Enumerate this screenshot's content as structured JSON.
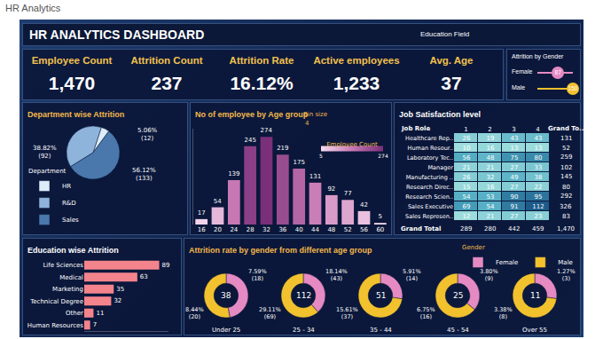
{
  "page_title": "HR Analytics",
  "dashboard_title": "HR ANALYTICS DASHBOARD",
  "filter_label": "Education Field",
  "kpis": [
    {
      "label": "Employee Count",
      "value": "1,470"
    },
    {
      "label": "Attrition Count",
      "value": "237"
    },
    {
      "label": "Attrition Rate",
      "value": "16.12%"
    },
    {
      "label": "Active employees",
      "value": "1,233"
    },
    {
      "label": "Avg. Age",
      "value": "37"
    }
  ],
  "gender_attrition": {
    "title": "Attrition by Gender",
    "categories": [
      "Female",
      "Male"
    ],
    "values": [
      87,
      150
    ],
    "colors": [
      "#e58ac3",
      "#f2c12e"
    ]
  },
  "chart_data": [
    {
      "type": "pie",
      "title": "Department wise Attrition",
      "categories": [
        "HR",
        "R&D",
        "Sales"
      ],
      "values": [
        12,
        92,
        133
      ],
      "value_labels": [
        [
          "5.06%",
          "(12)"
        ],
        [
          "38.82%",
          "(92)"
        ],
        [
          "56.12%",
          "(133)"
        ]
      ],
      "colors": [
        "#dcecf8",
        "#8fb4dc",
        "#4a78ad"
      ],
      "legend": "bottom left",
      "legend_title": "Department"
    },
    {
      "type": "bar",
      "title": "No of employee by Age group",
      "annotations": [
        "Bin size",
        "4"
      ],
      "categories": [
        "16",
        "20",
        "24",
        "28",
        "32",
        "36",
        "40",
        "44",
        "48",
        "52",
        "56",
        "60"
      ],
      "values": [
        17,
        54,
        139,
        245,
        274,
        219,
        175,
        131,
        92,
        77,
        42,
        5
      ],
      "data_labels": true,
      "ylim": [
        0,
        300
      ],
      "tick_labels": "x",
      "color_bar": {
        "title": "Employee Count",
        "range": [
          5,
          274
        ],
        "ticks": [
          5,
          274
        ]
      }
    },
    {
      "type": "heatmap",
      "title": "Job Satisfaction level",
      "row_header": "Job Role",
      "columns": [
        1,
        2,
        3,
        4
      ],
      "total_header": "Grand To..",
      "rows": [
        "Healthcare Rep..",
        "Human Resour..",
        "Laboratory Tec..",
        "Manager",
        "Manufacturing ..",
        "Research Direc..",
        "Research Scien..",
        "Sales Executive",
        "Sales Represen.."
      ],
      "cells": [
        [
          26,
          19,
          43,
          43
        ],
        [
          10,
          16,
          13,
          13
        ],
        [
          56,
          48,
          75,
          80
        ],
        [
          21,
          21,
          27,
          33
        ],
        [
          26,
          32,
          49,
          38
        ],
        [
          15,
          16,
          27,
          22
        ],
        [
          54,
          53,
          90,
          95
        ],
        [
          69,
          54,
          91,
          112
        ],
        [
          12,
          21,
          27,
          23
        ]
      ],
      "row_totals": [
        131,
        52,
        259,
        102,
        145,
        80,
        292,
        326,
        83
      ],
      "total_row_label": "Grand Total",
      "column_totals": [
        289,
        280,
        442,
        459
      ],
      "grand_total": "1,470",
      "data_labels": true
    },
    {
      "type": "bar",
      "title": "Education wise Attrition",
      "orientation": "horizontal",
      "categories": [
        "Life Sciences",
        "Medical",
        "Marketing",
        "Technical Degree",
        "Other",
        "Human Resources"
      ],
      "values": [
        89,
        63,
        35,
        32,
        11,
        7
      ],
      "color": "#f4848c",
      "data_labels": true,
      "xlim": [
        0,
        100
      ],
      "tick_labels": "y"
    },
    {
      "type": "pie",
      "title": "Attrition rate by gender from different age group",
      "legend": "top right",
      "legend_title": "Gender",
      "categories": [
        "Female",
        "Male"
      ],
      "colors": [
        "#e58ac3",
        "#f2c12e"
      ],
      "groups": [
        {
          "name": "Under 25",
          "total": 38,
          "values": [
            18,
            20
          ],
          "value_labels": [
            [
              "7.59%",
              "(18)"
            ],
            [
              "8.44%",
              "(20)"
            ]
          ]
        },
        {
          "name": "25 - 34",
          "total": 112,
          "values": [
            43,
            69
          ],
          "value_labels": [
            [
              "18.14%",
              "(43)"
            ],
            [
              "29.11%",
              "(69)"
            ]
          ]
        },
        {
          "name": "35 - 44",
          "total": 51,
          "values": [
            14,
            37
          ],
          "value_labels": [
            [
              "5.91%",
              "(14)"
            ],
            [
              "15.61%",
              "(37)"
            ]
          ]
        },
        {
          "name": "45 - 54",
          "total": 25,
          "values": [
            9,
            16
          ],
          "value_labels": [
            [
              "3.80%",
              "(9)"
            ],
            [
              "6.75%",
              "(16)"
            ]
          ]
        },
        {
          "name": "Over 55",
          "total": 11,
          "values": [
            3,
            8
          ],
          "value_labels": [
            [
              "1.27%",
              "(3)"
            ],
            [
              "3.38%",
              "(8)"
            ]
          ]
        }
      ]
    }
  ]
}
